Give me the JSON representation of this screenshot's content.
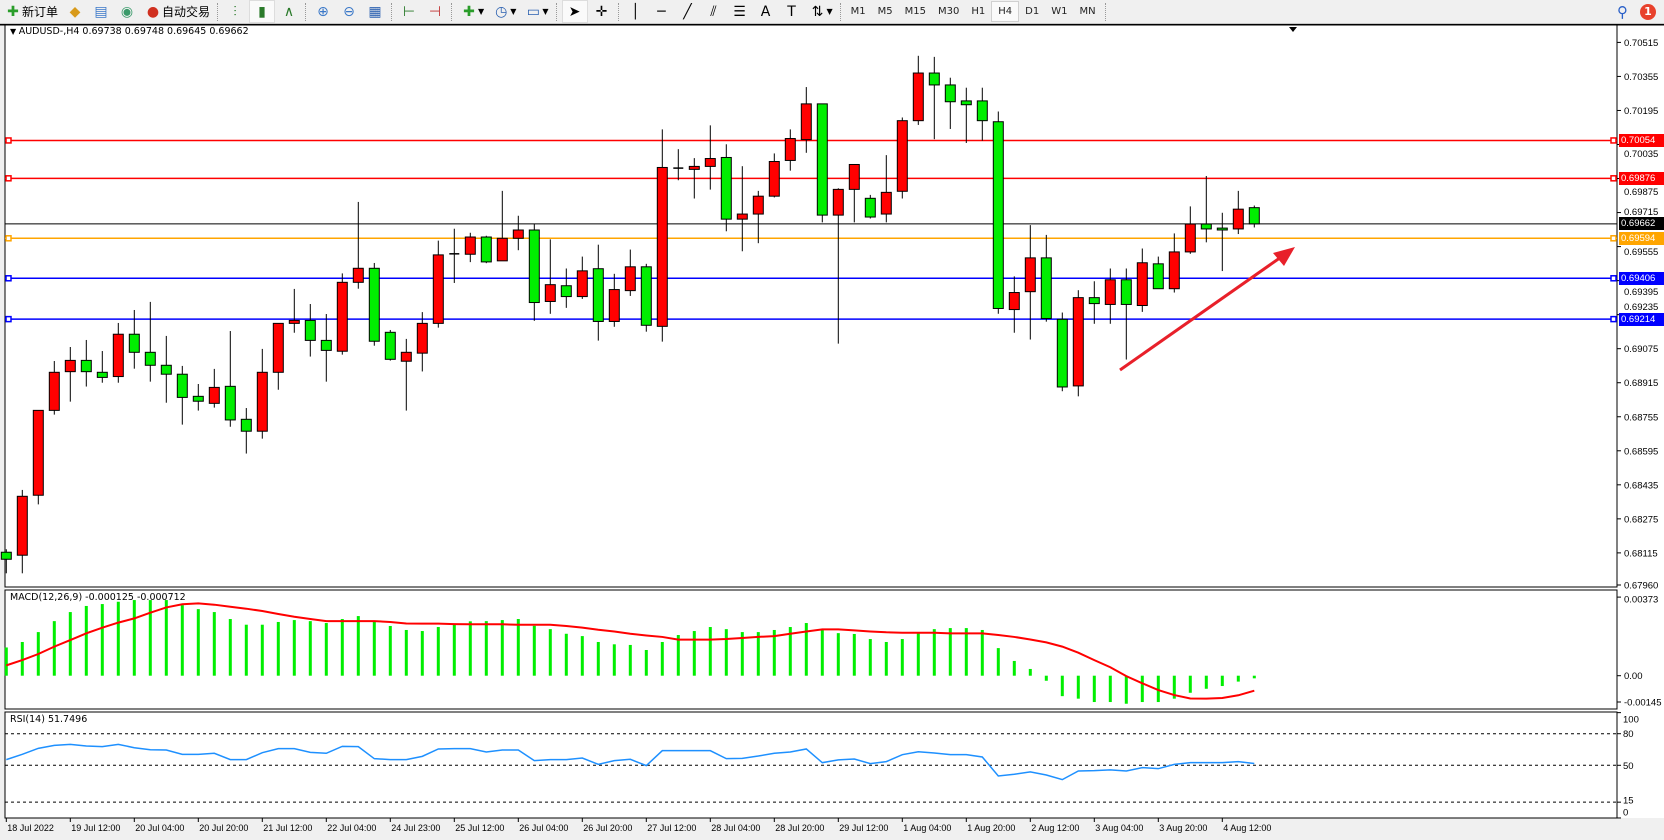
{
  "toolbar": {
    "new_order": "新订单",
    "auto_trading": "自动交易",
    "icons": [
      "new-order-icon",
      "market-watch-icon",
      "navigator-icon",
      "signals-icon",
      "auto-trading-icon",
      "bar-chart-icon",
      "candlestick-icon",
      "line-chart-icon",
      "zoom-in-icon",
      "zoom-out-icon",
      "tile-windows-icon",
      "chart-shift-icon",
      "autoscroll-icon",
      "indicators-icon",
      "periods-icon",
      "templates-icon",
      "cursor-icon",
      "crosshair-icon",
      "vertical-line-icon",
      "horizontal-line-icon",
      "trendline-icon",
      "equidistant-channel-icon",
      "fibonacci-icon",
      "text-icon",
      "text-label-icon",
      "arrows-icon"
    ],
    "timeframes": [
      "M1",
      "M5",
      "M15",
      "M30",
      "H1",
      "H4",
      "D1",
      "W1",
      "MN"
    ],
    "active_timeframe": "H4",
    "notification_count": "1"
  },
  "main": {
    "legend": "AUDUSD-,H4  0.69738 0.69748 0.69645 0.69662",
    "macd_legend": "MACD(12,26,9) -0.000125 -0.000712",
    "rsi_legend": "RSI(14) 51.7496"
  },
  "colors": {
    "bull": "#ff0000",
    "bear": "#00ee00",
    "macd_hist": "#00ee00",
    "macd_signal": "#ff0000",
    "rsi": "#1e90ff",
    "resistance": "#ff0000",
    "pivot": "#ffa500",
    "support": "#0000ff",
    "bid": "#000000",
    "arrow": "#e8202a"
  },
  "chart_data": [
    {
      "type": "candlestick",
      "symbol": "AUDUSD-",
      "timeframe": "H4",
      "ylim": [
        0.6796,
        0.706
      ],
      "price_ticks": [
        "0.70515",
        "0.70355",
        "0.70195",
        "0.70035",
        "0.69875",
        "0.69715",
        "0.69555",
        "0.69395",
        "0.69235",
        "0.69075",
        "0.68915",
        "0.68755",
        "0.68595",
        "0.68435",
        "0.68275",
        "0.68115",
        "0.67960"
      ],
      "time_ticks": [
        "18 Jul 2022",
        "19 Jul 12:00",
        "20 Jul 04:00",
        "20 Jul 20:00",
        "21 Jul 12:00",
        "22 Jul 04:00",
        "24 Jul 23:00",
        "25 Jul 12:00",
        "26 Jul 04:00",
        "26 Jul 20:00",
        "27 Jul 12:00",
        "28 Jul 04:00",
        "28 Jul 20:00",
        "29 Jul 12:00",
        "1 Aug 04:00",
        "1 Aug 20:00",
        "2 Aug 12:00",
        "3 Aug 04:00",
        "3 Aug 20:00",
        "4 Aug 12:00"
      ],
      "ohlc": [
        [
          0.68118,
          0.68132,
          0.68019,
          0.68085
        ],
        [
          0.68104,
          0.68411,
          0.68019,
          0.68381
        ],
        [
          0.68386,
          0.68785,
          0.68343,
          0.68785
        ],
        [
          0.68785,
          0.69017,
          0.68765,
          0.68964
        ],
        [
          0.68967,
          0.69083,
          0.68826,
          0.6902
        ],
        [
          0.6902,
          0.69116,
          0.68897,
          0.68967
        ],
        [
          0.68964,
          0.69064,
          0.68915,
          0.6894
        ],
        [
          0.68944,
          0.69196,
          0.68915,
          0.69143
        ],
        [
          0.69143,
          0.69257,
          0.68981,
          0.69058
        ],
        [
          0.69058,
          0.69295,
          0.6892,
          0.68997
        ],
        [
          0.68997,
          0.69135,
          0.68821,
          0.68955
        ],
        [
          0.68955,
          0.68994,
          0.68718,
          0.68846
        ],
        [
          0.68851,
          0.68909,
          0.68784,
          0.68828
        ],
        [
          0.68818,
          0.6898,
          0.68798,
          0.68893
        ],
        [
          0.68898,
          0.69158,
          0.68708,
          0.6874
        ],
        [
          0.68743,
          0.68796,
          0.68582,
          0.68687
        ],
        [
          0.68687,
          0.69074,
          0.68652,
          0.68964
        ],
        [
          0.68964,
          0.69194,
          0.68882,
          0.69194
        ],
        [
          0.69194,
          0.69356,
          0.6915,
          0.69208
        ],
        [
          0.69208,
          0.69285,
          0.69038,
          0.69114
        ],
        [
          0.69114,
          0.69238,
          0.6892,
          0.69067
        ],
        [
          0.69063,
          0.69429,
          0.69047,
          0.69387
        ],
        [
          0.69387,
          0.69765,
          0.69357,
          0.69453
        ],
        [
          0.69453,
          0.69478,
          0.69089,
          0.6911
        ],
        [
          0.69152,
          0.69163,
          0.69019,
          0.69025
        ],
        [
          0.69016,
          0.69121,
          0.68784,
          0.69058
        ],
        [
          0.69054,
          0.69247,
          0.68968,
          0.69194
        ],
        [
          0.69194,
          0.69583,
          0.69174,
          0.69516
        ],
        [
          0.69521,
          0.69639,
          0.69384,
          0.69521
        ],
        [
          0.69519,
          0.6962,
          0.69482,
          0.696
        ],
        [
          0.696,
          0.69606,
          0.69477,
          0.69483
        ],
        [
          0.69488,
          0.69817,
          0.69488,
          0.69594
        ],
        [
          0.69594,
          0.697,
          0.69538,
          0.69633
        ],
        [
          0.69633,
          0.69661,
          0.69206,
          0.69292
        ],
        [
          0.69297,
          0.69589,
          0.69239,
          0.69376
        ],
        [
          0.69371,
          0.69452,
          0.69267,
          0.6932
        ],
        [
          0.6932,
          0.69508,
          0.69309,
          0.69441
        ],
        [
          0.69451,
          0.69564,
          0.69113,
          0.69203
        ],
        [
          0.69203,
          0.69427,
          0.69178,
          0.69353
        ],
        [
          0.69348,
          0.69541,
          0.69323,
          0.6946
        ],
        [
          0.6946,
          0.69474,
          0.69155,
          0.69185
        ],
        [
          0.6918,
          0.70106,
          0.69108,
          0.69927
        ],
        [
          0.69924,
          0.70013,
          0.69867,
          0.69924
        ],
        [
          0.69918,
          0.69971,
          0.69781,
          0.69932
        ],
        [
          0.69932,
          0.70125,
          0.69823,
          0.69969
        ],
        [
          0.69974,
          0.70036,
          0.69627,
          0.69684
        ],
        [
          0.69684,
          0.69933,
          0.69533,
          0.69708
        ],
        [
          0.69708,
          0.69817,
          0.69571,
          0.69792
        ],
        [
          0.69792,
          0.69993,
          0.69786,
          0.69955
        ],
        [
          0.6996,
          0.70106,
          0.69912,
          0.70063
        ],
        [
          0.70058,
          0.70305,
          0.69996,
          0.70226
        ],
        [
          0.70226,
          0.70226,
          0.69669,
          0.69703
        ],
        [
          0.69703,
          0.69829,
          0.69099,
          0.69824
        ],
        [
          0.69824,
          0.69941,
          0.69669,
          0.69941
        ],
        [
          0.69782,
          0.69798,
          0.69687,
          0.69694
        ],
        [
          0.69708,
          0.69985,
          0.69669,
          0.6981
        ],
        [
          0.69815,
          0.70162,
          0.69781,
          0.70147
        ],
        [
          0.70147,
          0.70452,
          0.70127,
          0.70371
        ],
        [
          0.70371,
          0.70447,
          0.7006,
          0.70315
        ],
        [
          0.70315,
          0.70349,
          0.70108,
          0.70236
        ],
        [
          0.7024,
          0.70302,
          0.70042,
          0.70222
        ],
        [
          0.7024,
          0.70302,
          0.70053,
          0.70147
        ],
        [
          0.70142,
          0.7019,
          0.69239,
          0.69264
        ],
        [
          0.69259,
          0.69415,
          0.6915,
          0.69339
        ],
        [
          0.69343,
          0.69656,
          0.69118,
          0.69502
        ],
        [
          0.69502,
          0.6961,
          0.69202,
          0.69217
        ],
        [
          0.69213,
          0.69245,
          0.68875,
          0.68895
        ],
        [
          0.689,
          0.6935,
          0.68851,
          0.69315
        ],
        [
          0.69315,
          0.69392,
          0.69192,
          0.69287
        ],
        [
          0.69283,
          0.69452,
          0.69192,
          0.69399
        ],
        [
          0.69399,
          0.69452,
          0.69024,
          0.69283
        ],
        [
          0.69278,
          0.69546,
          0.69248,
          0.69479
        ],
        [
          0.69474,
          0.69508,
          0.69357,
          0.69357
        ],
        [
          0.69357,
          0.69617,
          0.69339,
          0.6953
        ],
        [
          0.6953,
          0.69744,
          0.69521,
          0.69661
        ],
        [
          0.69661,
          0.69887,
          0.69575,
          0.69638
        ],
        [
          0.69642,
          0.69714,
          0.6944,
          0.69633
        ],
        [
          0.69638,
          0.69817,
          0.69614,
          0.69731
        ],
        [
          0.69738,
          0.69748,
          0.69645,
          0.69662
        ]
      ],
      "levels": [
        {
          "price": 0.70054,
          "label": "0.70054",
          "color": "#ff0000"
        },
        {
          "price": 0.69876,
          "label": "0.69876",
          "color": "#ff0000"
        },
        {
          "price": 0.69594,
          "label": "0.69594",
          "color": "#ffa500"
        },
        {
          "price": 0.69406,
          "label": "0.69406",
          "color": "#0000ff"
        },
        {
          "price": 0.69214,
          "label": "0.69214",
          "color": "#0000ff"
        }
      ],
      "bid": {
        "price": 0.69662,
        "label": "0.69662"
      }
    },
    {
      "type": "bar",
      "indicator": "MACD(12,26,9)",
      "ylim": [
        -0.00145,
        0.00373
      ],
      "y_ticks": [
        "0.00373",
        "0.00",
        "-0.00145"
      ],
      "main": [
        0.00134,
        0.0016,
        0.00207,
        0.00259,
        0.00302,
        0.00331,
        0.0034,
        0.00351,
        0.00359,
        0.00359,
        0.00359,
        0.00335,
        0.00316,
        0.00302,
        0.00269,
        0.00242,
        0.00242,
        0.00255,
        0.00264,
        0.00259,
        0.0025,
        0.00269,
        0.00283,
        0.00256,
        0.00236,
        0.00217,
        0.00212,
        0.00231,
        0.00242,
        0.00258,
        0.00259,
        0.00264,
        0.00269,
        0.00237,
        0.00221,
        0.00199,
        0.00188,
        0.0016,
        0.00149,
        0.00146,
        0.00122,
        0.0016,
        0.00193,
        0.00212,
        0.00231,
        0.00221,
        0.00207,
        0.00207,
        0.00217,
        0.00231,
        0.0025,
        0.00217,
        0.00202,
        0.00198,
        0.00174,
        0.0016,
        0.00174,
        0.00202,
        0.00221,
        0.00226,
        0.00226,
        0.00217,
        0.00131,
        0.0007,
        0.00032,
        -0.00024,
        -0.00097,
        -0.00109,
        -0.00125,
        -0.00125,
        -0.00133,
        -0.00125,
        -0.00125,
        -0.00109,
        -0.00081,
        -0.00062,
        -0.00049,
        -0.00028,
        -0.000125
      ],
      "signal": [
        0.00049,
        0.00074,
        0.00103,
        0.00138,
        0.00169,
        0.00201,
        0.00228,
        0.00252,
        0.00272,
        0.00299,
        0.00324,
        0.00339,
        0.00343,
        0.00337,
        0.00327,
        0.00318,
        0.00307,
        0.00293,
        0.0028,
        0.00269,
        0.00259,
        0.00259,
        0.00259,
        0.00259,
        0.00255,
        0.00248,
        0.00247,
        0.00247,
        0.00245,
        0.00244,
        0.00244,
        0.00244,
        0.00242,
        0.00242,
        0.00242,
        0.00236,
        0.00228,
        0.00218,
        0.0021,
        0.00199,
        0.00191,
        0.00184,
        0.00171,
        0.00171,
        0.00171,
        0.00174,
        0.00179,
        0.00184,
        0.00188,
        0.00199,
        0.0021,
        0.0022,
        0.0022,
        0.00215,
        0.0021,
        0.00206,
        0.00204,
        0.00204,
        0.00204,
        0.00201,
        0.00201,
        0.00201,
        0.00193,
        0.00184,
        0.00172,
        0.00158,
        0.00138,
        0.00109,
        0.00074,
        0.0004,
        -2e-05,
        -0.00036,
        -0.00068,
        -0.00092,
        -0.00108,
        -0.00109,
        -0.00106,
        -0.00093,
        -0.000712
      ]
    },
    {
      "type": "line",
      "indicator": "RSI(14)",
      "ylim": [
        0,
        100
      ],
      "levels": [
        80,
        50,
        15
      ],
      "y_ticks": [
        "100",
        "80",
        "50",
        "15",
        "0"
      ],
      "values": [
        55.4,
        60.4,
        66.1,
        68.9,
        69.9,
        68.3,
        67.7,
        69.9,
        66.7,
        64.8,
        64.5,
        60.4,
        60.4,
        61.4,
        55.4,
        55.4,
        62.0,
        65.8,
        65.8,
        62.3,
        61.4,
        68.0,
        67.7,
        56.3,
        55.4,
        55.4,
        58.5,
        65.5,
        65.8,
        65.8,
        62.6,
        64.5,
        64.5,
        54.4,
        55.4,
        55.4,
        56.9,
        50.9,
        54.4,
        55.7,
        49.7,
        63.9,
        63.9,
        63.9,
        63.9,
        56.3,
        56.6,
        58.8,
        61.4,
        62.6,
        65.5,
        52.5,
        55.1,
        56.0,
        51.6,
        53.5,
        60.1,
        62.9,
        61.7,
        60.1,
        60.1,
        57.9,
        39.9,
        41.5,
        43.7,
        40.8,
        36.4,
        44.6,
        44.9,
        45.6,
        44.6,
        47.8,
        46.8,
        50.9,
        52.5,
        52.5,
        52.5,
        53.5,
        51.7496
      ]
    }
  ]
}
